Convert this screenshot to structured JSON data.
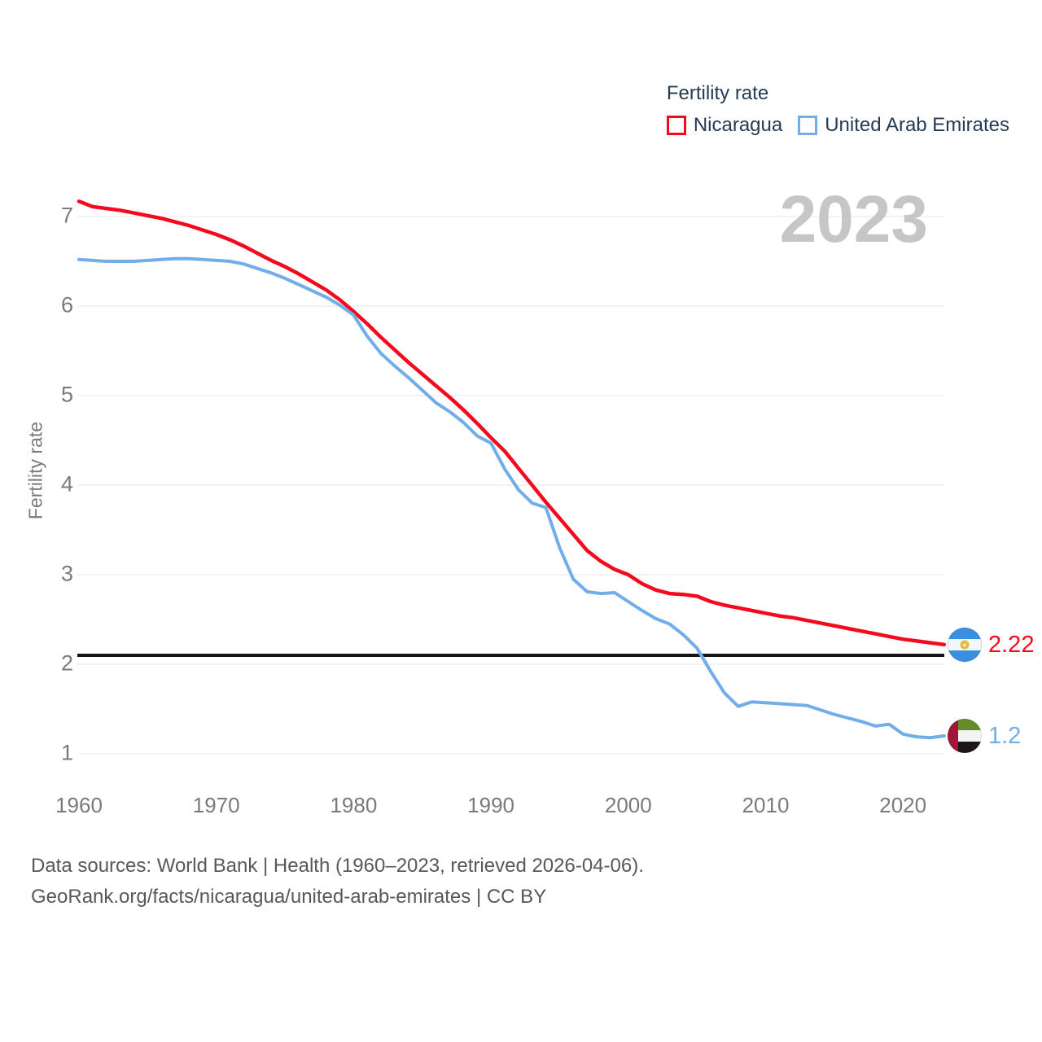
{
  "legend": {
    "title": "Fertility rate"
  },
  "watermark": "2023",
  "end_labels": [
    {
      "country": "Nicaragua",
      "value": "2.22"
    },
    {
      "country": "United Arab Emirates",
      "value": "1.2"
    }
  ],
  "footer": {
    "line1": "Data sources: World Bank | Health (1960–2023, retrieved 2026-04-06).",
    "line2": "GeoRank.org/facts/nicaragua/united-arab-emirates | CC BY"
  },
  "colors": {
    "nicaragua": "#f40a1e",
    "uae": "#71aee9",
    "reference_line": "#141414",
    "gridline": "#ececec",
    "tick_text": "#7a7a7a",
    "legend_text": "#243b53",
    "watermark_text": "#c6c6c6",
    "footer_text": "#55585c"
  },
  "chart_data": {
    "type": "line",
    "title": "Fertility rate",
    "ylabel": "Fertility rate",
    "xlabel": "",
    "grid": "horizontal",
    "legend_position": "top-right",
    "xlim": [
      1960,
      2023
    ],
    "ylim": [
      0.8,
      7.35
    ],
    "yticks": [
      1,
      2,
      3,
      4,
      5,
      6,
      7
    ],
    "xticks": [
      1960,
      1970,
      1980,
      1990,
      2000,
      2010,
      2020
    ],
    "reference_line": 2.1,
    "x": [
      1960,
      1961,
      1962,
      1963,
      1964,
      1965,
      1966,
      1967,
      1968,
      1969,
      1970,
      1971,
      1972,
      1973,
      1974,
      1975,
      1976,
      1977,
      1978,
      1979,
      1980,
      1981,
      1982,
      1983,
      1984,
      1985,
      1986,
      1987,
      1988,
      1989,
      1990,
      1991,
      1992,
      1993,
      1994,
      1995,
      1996,
      1997,
      1998,
      1999,
      2000,
      2001,
      2002,
      2003,
      2004,
      2005,
      2006,
      2007,
      2008,
      2009,
      2010,
      2011,
      2012,
      2013,
      2014,
      2015,
      2016,
      2017,
      2018,
      2019,
      2020,
      2021,
      2022,
      2023
    ],
    "series": [
      {
        "name": "Nicaragua",
        "color": "#f40a1e",
        "end_value": 2.22,
        "values": [
          7.17,
          7.11,
          7.09,
          7.07,
          7.04,
          7.01,
          6.98,
          6.94,
          6.9,
          6.85,
          6.8,
          6.74,
          6.67,
          6.59,
          6.51,
          6.44,
          6.36,
          6.27,
          6.18,
          6.07,
          5.94,
          5.8,
          5.65,
          5.51,
          5.37,
          5.24,
          5.11,
          4.98,
          4.84,
          4.69,
          4.53,
          4.38,
          4.19,
          4.0,
          3.81,
          3.63,
          3.45,
          3.27,
          3.15,
          3.06,
          3.0,
          2.9,
          2.83,
          2.79,
          2.78,
          2.76,
          2.7,
          2.66,
          2.63,
          2.6,
          2.57,
          2.54,
          2.52,
          2.49,
          2.46,
          2.43,
          2.4,
          2.37,
          2.34,
          2.31,
          2.28,
          2.26,
          2.24,
          2.22
        ]
      },
      {
        "name": "United Arab Emirates",
        "color": "#71aee9",
        "end_value": 1.2,
        "values": [
          6.52,
          6.51,
          6.5,
          6.5,
          6.5,
          6.51,
          6.52,
          6.53,
          6.53,
          6.52,
          6.51,
          6.5,
          6.47,
          6.42,
          6.37,
          6.31,
          6.24,
          6.17,
          6.1,
          6.01,
          5.9,
          5.66,
          5.47,
          5.33,
          5.2,
          5.06,
          4.92,
          4.82,
          4.7,
          4.55,
          4.47,
          4.18,
          3.95,
          3.8,
          3.75,
          3.3,
          2.95,
          2.81,
          2.79,
          2.8,
          2.7,
          2.6,
          2.51,
          2.45,
          2.33,
          2.18,
          1.92,
          1.68,
          1.53,
          1.58,
          1.57,
          1.56,
          1.55,
          1.54,
          1.49,
          1.44,
          1.4,
          1.36,
          1.31,
          1.33,
          1.22,
          1.19,
          1.18,
          1.2
        ]
      }
    ]
  }
}
